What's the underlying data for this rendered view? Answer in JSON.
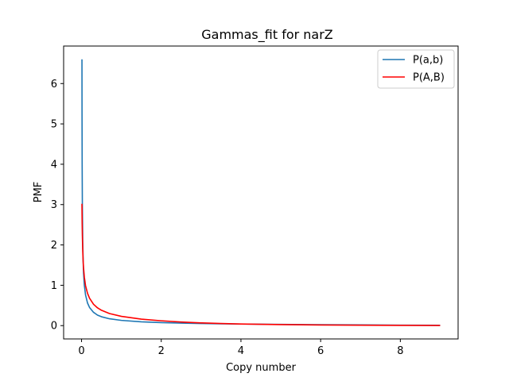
{
  "chart_data": {
    "type": "line",
    "title": "Gammas_fit for narZ",
    "xlabel": "Copy number",
    "ylabel": "PMF",
    "xlim": [
      -0.45,
      9.45
    ],
    "ylim": [
      -0.33,
      6.93
    ],
    "xticks": [
      0,
      2,
      4,
      6,
      8
    ],
    "yticks": [
      0,
      1,
      2,
      3,
      4,
      5,
      6
    ],
    "grid": false,
    "legend_position": "top-right",
    "series": [
      {
        "name": "P(a,b)",
        "color": "#1f77b4",
        "x": [
          0.01,
          0.012,
          0.015,
          0.02,
          0.03,
          0.04,
          0.05,
          0.07,
          0.1,
          0.15,
          0.2,
          0.3,
          0.4,
          0.5,
          0.7,
          1.0,
          1.5,
          2.0,
          2.5,
          3.0,
          3.5,
          4.0,
          5.0,
          6.0,
          7.0,
          8.0,
          9.0
        ],
        "y": [
          6.6,
          5.2,
          4.0,
          3.0,
          2.05,
          1.6,
          1.3,
          1.0,
          0.76,
          0.56,
          0.45,
          0.33,
          0.26,
          0.22,
          0.17,
          0.13,
          0.095,
          0.075,
          0.062,
          0.052,
          0.045,
          0.039,
          0.03,
          0.023,
          0.017,
          0.012,
          0.008
        ]
      },
      {
        "name": "P(A,B)",
        "color": "#ff0000",
        "x": [
          0.01,
          0.015,
          0.02,
          0.03,
          0.04,
          0.05,
          0.07,
          0.1,
          0.15,
          0.2,
          0.3,
          0.4,
          0.5,
          0.7,
          1.0,
          1.5,
          2.0,
          2.5,
          3.0,
          3.5,
          4.0,
          5.0,
          6.0,
          7.0,
          8.0,
          9.0
        ],
        "y": [
          3.02,
          2.55,
          2.25,
          1.85,
          1.6,
          1.43,
          1.2,
          0.99,
          0.8,
          0.68,
          0.53,
          0.44,
          0.38,
          0.3,
          0.23,
          0.16,
          0.12,
          0.09,
          0.068,
          0.052,
          0.04,
          0.025,
          0.016,
          0.01,
          0.006,
          0.004
        ]
      }
    ]
  }
}
